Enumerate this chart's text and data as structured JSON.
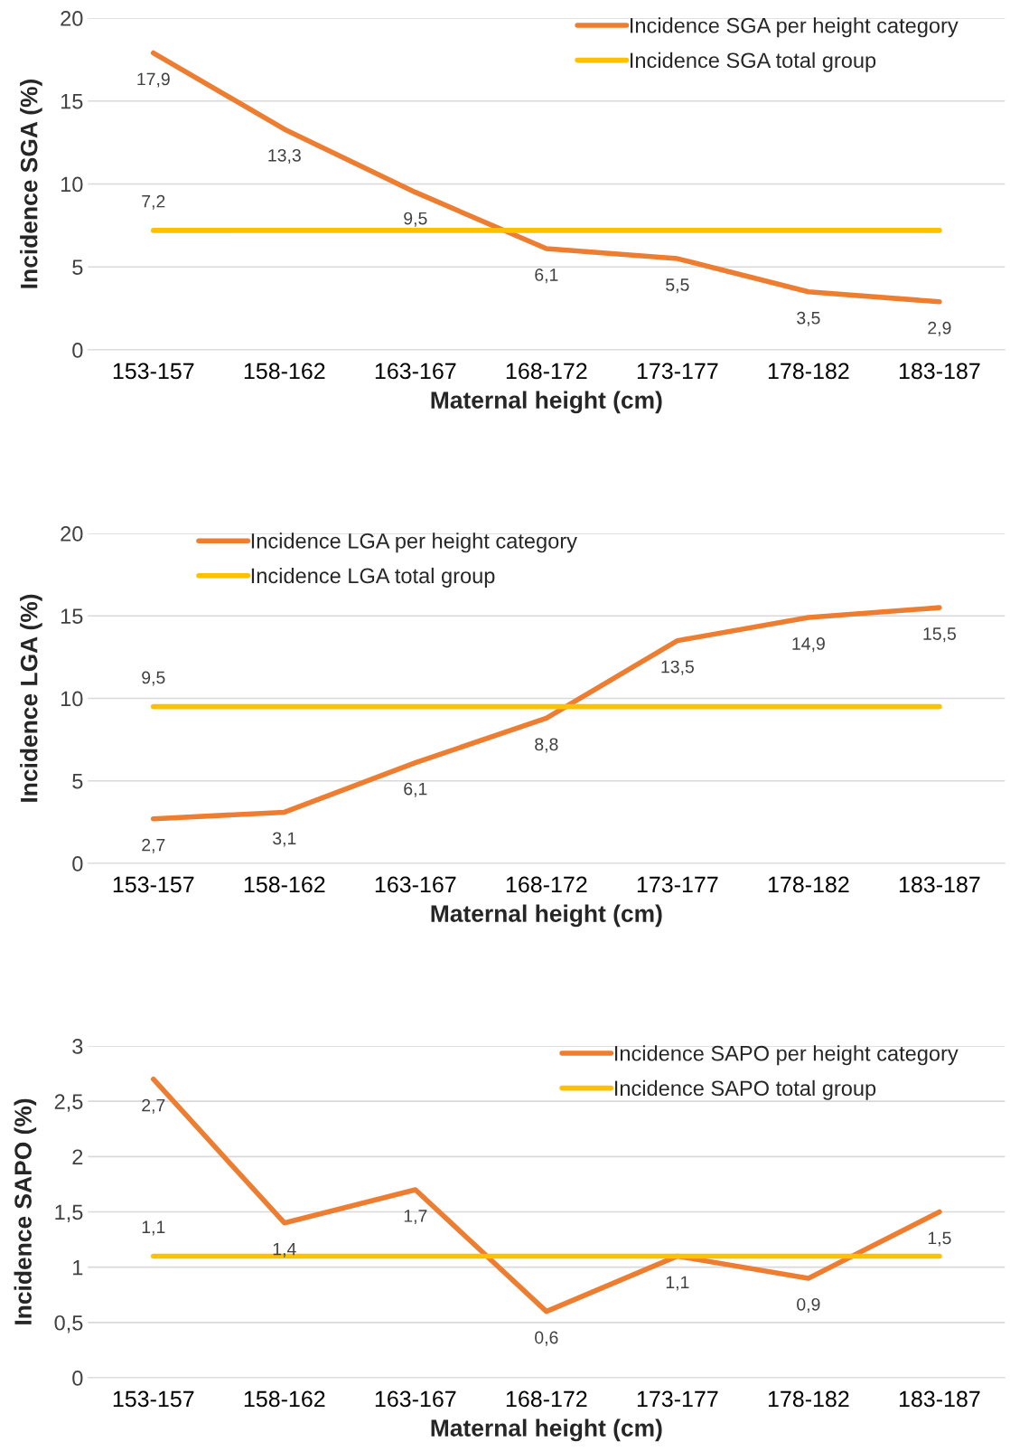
{
  "chart_data": [
    {
      "type": "line",
      "xlabel": "Maternal height (cm)",
      "ylabel": "Incidence SGA (%)",
      "categories": [
        "153-157",
        "158-162",
        "163-167",
        "168-172",
        "173-177",
        "178-182",
        "183-187"
      ],
      "ylim": [
        0,
        20
      ],
      "yticks": [
        0,
        5,
        10,
        15,
        20
      ],
      "grid": "y",
      "legend": "top right",
      "marker": "none",
      "line_style": "solid",
      "series": [
        {
          "name": "Incidence SGA per height category",
          "color": "#ed7d31",
          "values": [
            17.9,
            13.3,
            9.5,
            6.1,
            5.5,
            3.5,
            2.9
          ],
          "value_labels": [
            "17,9",
            "13,3",
            "9,5",
            "6,1",
            "5,5",
            "3,5",
            "2,9"
          ]
        },
        {
          "name": "Incidence SGA total group",
          "color": "#ffc000",
          "values": [
            7.2,
            7.2,
            7.2,
            7.2,
            7.2,
            7.2,
            7.2
          ],
          "value_labels": [
            "7,2",
            null,
            null,
            null,
            null,
            null,
            null
          ]
        }
      ]
    },
    {
      "type": "line",
      "xlabel": "Maternal height (cm)",
      "ylabel": "Incidence LGA (%)",
      "categories": [
        "153-157",
        "158-162",
        "163-167",
        "168-172",
        "173-177",
        "178-182",
        "183-187"
      ],
      "ylim": [
        0,
        20
      ],
      "yticks": [
        0,
        5,
        10,
        15,
        20
      ],
      "grid": "y",
      "legend": "top left",
      "marker": "none",
      "line_style": "solid",
      "series": [
        {
          "name": "Incidence LGA per height category",
          "color": "#ed7d31",
          "values": [
            2.7,
            3.1,
            6.1,
            8.8,
            13.5,
            14.9,
            15.5
          ],
          "value_labels": [
            "2,7",
            "3,1",
            "6,1",
            "8,8",
            "13,5",
            "14,9",
            "15,5"
          ]
        },
        {
          "name": "Incidence LGA total group",
          "color": "#ffc000",
          "values": [
            9.5,
            9.5,
            9.5,
            9.5,
            9.5,
            9.5,
            9.5
          ],
          "value_labels": [
            "9,5",
            null,
            null,
            null,
            null,
            null,
            null
          ]
        }
      ]
    },
    {
      "type": "line",
      "xlabel": "Maternal height (cm)",
      "ylabel": "Incidence SAPO (%)",
      "categories": [
        "153-157",
        "158-162",
        "163-167",
        "168-172",
        "173-177",
        "178-182",
        "183-187"
      ],
      "ylim": [
        0,
        3
      ],
      "yticks": [
        0,
        {
          "value": 0.5,
          "label": "0,5"
        },
        1,
        {
          "value": 1.5,
          "label": "1,5"
        },
        2,
        {
          "value": 2.5,
          "label": "2,5"
        },
        3
      ],
      "grid": "y",
      "legend": "top right",
      "marker": "none",
      "line_style": "solid",
      "series": [
        {
          "name": "Incidence SAPO per height category",
          "color": "#ed7d31",
          "values": [
            2.7,
            1.4,
            1.7,
            0.6,
            1.1,
            0.9,
            1.5
          ],
          "value_labels": [
            "2,7",
            "1,4",
            "1,7",
            "0,6",
            "1,1",
            "0,9",
            "1,5"
          ]
        },
        {
          "name": "Incidence SAPO total group",
          "color": "#ffc000",
          "values": [
            1.1,
            1.1,
            1.1,
            1.1,
            1.1,
            1.1,
            1.1
          ],
          "value_labels": [
            "1,1",
            null,
            null,
            null,
            null,
            null,
            null
          ]
        }
      ]
    }
  ]
}
